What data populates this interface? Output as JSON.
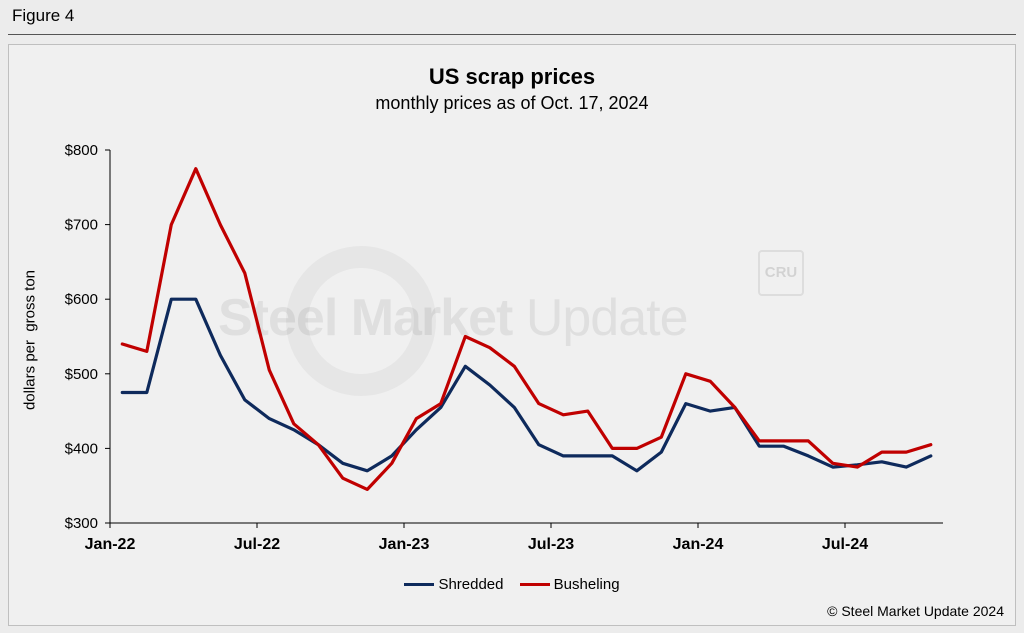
{
  "figure_label": "Figure 4",
  "copyright": "© Steel Market Update 2024",
  "watermark": {
    "bold": "Steel Market",
    "light": " Update",
    "logo": "CRU"
  },
  "colors": {
    "shredded": "#0e2a5c",
    "busheling": "#c00000"
  },
  "chart_data": {
    "type": "line",
    "title": "US scrap prices",
    "subtitle": "monthly prices as of Oct. 17, 2024",
    "ylabel": "dollars per  gross ton",
    "xlabel": "",
    "ylim": [
      300,
      800
    ],
    "yticks": [
      300,
      400,
      500,
      600,
      700,
      800
    ],
    "ytick_labels": [
      "$300",
      "$400",
      "$500",
      "$600",
      "$700",
      "$800"
    ],
    "xtick_labels": [
      {
        "index": 0,
        "label": "Jan-22"
      },
      {
        "index": 6,
        "label": "Jul-22"
      },
      {
        "index": 12,
        "label": "Jan-23"
      },
      {
        "index": 18,
        "label": "Jul-23"
      },
      {
        "index": 24,
        "label": "Jan-24"
      },
      {
        "index": 30,
        "label": "Jul-24"
      }
    ],
    "categories": [
      "Jan-22",
      "Feb-22",
      "Mar-22",
      "Apr-22",
      "May-22",
      "Jun-22",
      "Jul-22",
      "Aug-22",
      "Sep-22",
      "Oct-22",
      "Nov-22",
      "Dec-22",
      "Jan-23",
      "Feb-23",
      "Mar-23",
      "Apr-23",
      "May-23",
      "Jun-23",
      "Jul-23",
      "Aug-23",
      "Sep-23",
      "Oct-23",
      "Nov-23",
      "Dec-23",
      "Jan-24",
      "Feb-24",
      "Mar-24",
      "Apr-24",
      "May-24",
      "Jun-24",
      "Jul-24",
      "Aug-24",
      "Sep-24",
      "Oct-24"
    ],
    "series": [
      {
        "name": "Shredded",
        "color": "#0e2a5c",
        "values": [
          475,
          475,
          600,
          600,
          525,
          465,
          440,
          425,
          405,
          380,
          370,
          390,
          425,
          455,
          510,
          485,
          455,
          405,
          390,
          390,
          390,
          370,
          395,
          460,
          450,
          455,
          403,
          403,
          390,
          375,
          378,
          382,
          375,
          390
        ]
      },
      {
        "name": "Busheling",
        "color": "#c00000",
        "values": [
          540,
          530,
          700,
          775,
          700,
          635,
          505,
          433,
          405,
          360,
          345,
          380,
          440,
          460,
          550,
          535,
          510,
          460,
          445,
          450,
          400,
          400,
          415,
          500,
          490,
          455,
          410,
          410,
          410,
          380,
          375,
          395,
          395,
          405
        ]
      }
    ],
    "legend": [
      "Shredded",
      "Busheling"
    ],
    "legend_position": "bottom-center",
    "grid": false
  }
}
